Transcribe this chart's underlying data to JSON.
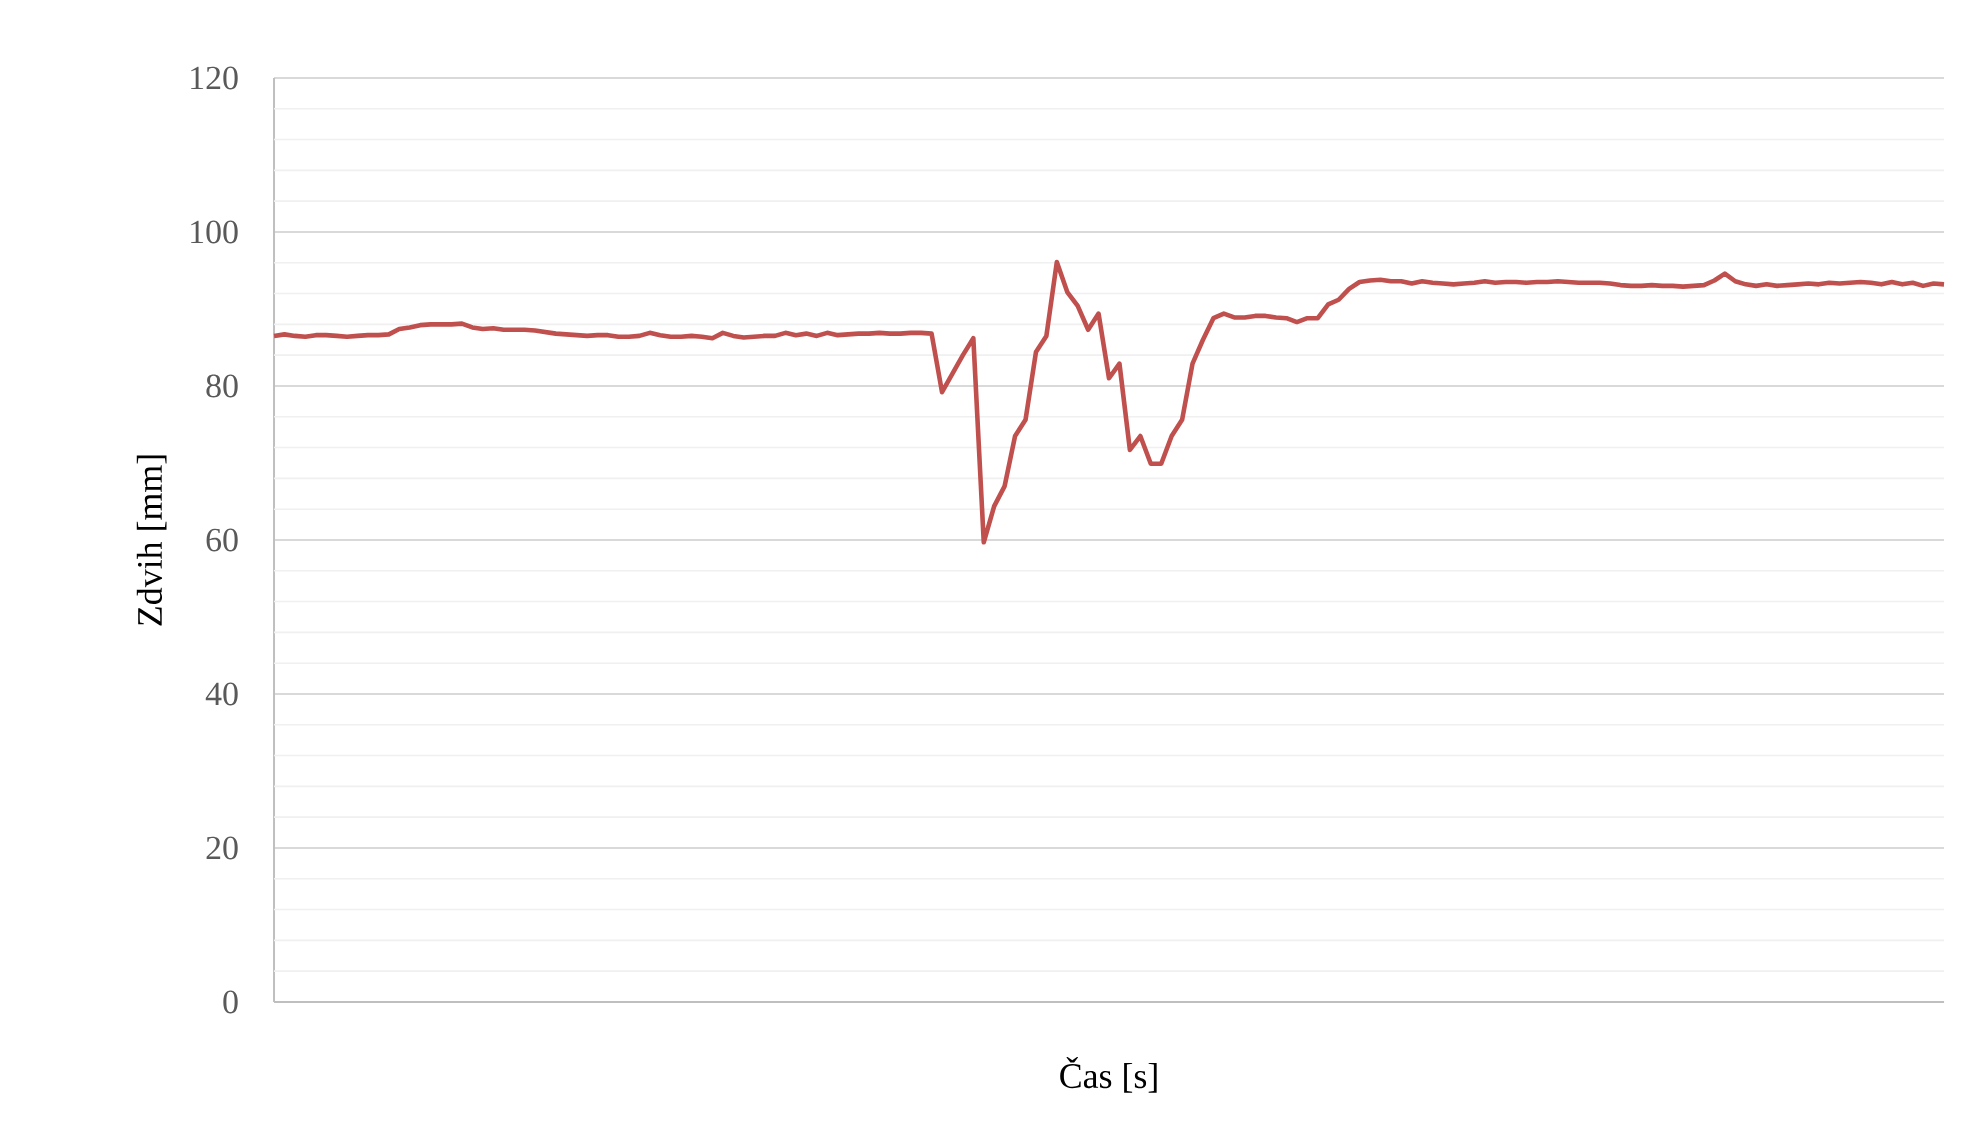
{
  "chart_data": {
    "type": "line",
    "xlabel": "Čas [s]",
    "ylabel": "Zdvih [mm]",
    "categories": [
      null,
      null,
      null,
      null,
      null,
      null,
      null,
      null,
      null,
      null,
      null,
      null,
      null,
      null,
      null,
      null,
      null,
      null,
      null,
      null,
      null,
      null,
      null,
      null,
      null,
      null,
      null,
      null,
      null,
      null,
      null,
      null,
      null,
      null,
      null,
      null,
      null,
      null,
      null,
      null,
      null,
      null,
      null,
      null,
      null,
      null,
      null,
      null,
      null,
      null,
      null,
      null,
      null,
      null,
      null,
      null,
      null,
      null,
      null,
      null,
      null,
      null,
      null,
      null,
      null,
      null,
      null,
      null,
      null,
      null,
      null,
      null,
      null,
      null,
      null,
      null,
      null,
      null,
      null,
      null,
      null,
      null,
      null,
      null,
      null,
      null,
      null,
      null,
      null,
      null,
      null,
      null,
      null,
      null,
      null,
      null,
      null,
      null,
      null,
      null,
      null,
      null,
      null,
      null,
      null,
      null,
      null,
      null,
      null,
      null,
      null,
      null,
      null,
      null,
      null,
      null,
      null,
      null,
      null,
      null,
      null,
      null,
      null,
      null,
      null,
      null,
      null,
      null,
      null,
      null,
      null,
      null,
      null,
      null,
      null,
      null,
      null,
      null,
      null,
      null,
      null,
      null,
      null,
      null,
      null,
      null,
      null,
      null,
      null,
      null,
      null,
      null,
      null,
      null,
      null,
      null,
      null,
      null,
      null,
      null,
      null
    ],
    "series": [
      {
        "color": "#c0504d",
        "values": [
          86.5,
          86.7,
          86.5,
          86.4,
          86.6,
          86.6,
          86.5,
          86.4,
          86.5,
          86.6,
          86.6,
          86.7,
          87.4,
          87.6,
          87.9,
          88.0,
          88.0,
          88.0,
          88.1,
          87.6,
          87.4,
          87.5,
          87.3,
          87.3,
          87.3,
          87.2,
          87.0,
          86.8,
          86.7,
          86.6,
          86.5,
          86.6,
          86.6,
          86.4,
          86.4,
          86.5,
          86.9,
          86.6,
          86.4,
          86.4,
          86.5,
          86.4,
          86.2,
          86.9,
          86.5,
          86.3,
          86.4,
          86.5,
          86.5,
          86.9,
          86.6,
          86.8,
          86.5,
          86.9,
          86.6,
          86.7,
          86.8,
          86.8,
          86.9,
          86.8,
          86.8,
          86.9,
          86.9,
          86.8,
          79.2,
          81.6,
          84.0,
          86.2,
          59.7,
          64.4,
          67.0,
          73.5,
          75.6,
          84.4,
          86.5,
          96.1,
          92.2,
          90.4,
          87.3,
          89.4,
          81.0,
          82.9,
          71.7,
          73.5,
          69.9,
          69.9,
          73.5,
          75.6,
          82.9,
          86.0,
          88.8,
          89.4,
          88.9,
          88.9,
          89.1,
          89.1,
          88.9,
          88.8,
          88.3,
          88.8,
          88.8,
          90.6,
          91.2,
          92.6,
          93.5,
          93.7,
          93.8,
          93.6,
          93.6,
          93.3,
          93.6,
          93.4,
          93.3,
          93.2,
          93.3,
          93.4,
          93.6,
          93.4,
          93.5,
          93.5,
          93.4,
          93.5,
          93.5,
          93.6,
          93.5,
          93.4,
          93.4,
          93.4,
          93.3,
          93.1,
          93.0,
          93.0,
          93.1,
          93.0,
          93.0,
          92.9,
          93.0,
          93.1,
          93.7,
          94.6,
          93.6,
          93.2,
          93.0,
          93.2,
          93.0,
          93.1,
          93.2,
          93.3,
          93.2,
          93.4,
          93.3,
          93.4,
          93.5,
          93.4,
          93.2,
          93.5,
          93.2,
          93.4,
          93.0,
          93.3,
          93.2
        ]
      }
    ],
    "ylim": [
      0,
      120
    ],
    "yticks": [
      0,
      {
        "value": 4,
        "label": null
      },
      {
        "value": 8,
        "label": null
      },
      {
        "value": 12,
        "label": null
      },
      {
        "value": 16,
        "label": null
      },
      20,
      {
        "value": 24,
        "label": null
      },
      {
        "value": 28,
        "label": null
      },
      {
        "value": 32,
        "label": null
      },
      {
        "value": 36,
        "label": null
      },
      40,
      {
        "value": 44,
        "label": null
      },
      {
        "value": 48,
        "label": null
      },
      {
        "value": 52,
        "label": null
      },
      {
        "value": 56,
        "label": null
      },
      60,
      {
        "value": 64,
        "label": null
      },
      {
        "value": 68,
        "label": null
      },
      {
        "value": 72,
        "label": null
      },
      {
        "value": 76,
        "label": null
      },
      80,
      {
        "value": 84,
        "label": null
      },
      {
        "value": 88,
        "label": null
      },
      {
        "value": 92,
        "label": null
      },
      {
        "value": 96,
        "label": null
      },
      100,
      {
        "value": 104,
        "label": null
      },
      {
        "value": 108,
        "label": null
      },
      {
        "value": 112,
        "label": null
      },
      {
        "value": 116,
        "label": null
      },
      120
    ],
    "grid": "y",
    "marker": "none",
    "line_style": "solid"
  }
}
